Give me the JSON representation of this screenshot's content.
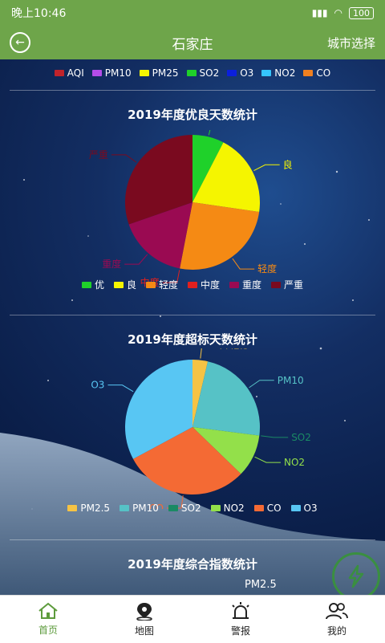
{
  "status": {
    "time": "晚上10:46",
    "battery": "100"
  },
  "appbar": {
    "title": "石家庄",
    "city_button": "城市选择"
  },
  "top_legend": [
    {
      "label": "AQI",
      "color": "#c1232b"
    },
    {
      "label": "PM10",
      "color": "#b44ce8"
    },
    {
      "label": "PM25",
      "color": "#f5f500"
    },
    {
      "label": "SO2",
      "color": "#1fd12a"
    },
    {
      "label": "O3",
      "color": "#0b1fdc"
    },
    {
      "label": "NO2",
      "color": "#35c6ff"
    },
    {
      "label": "CO",
      "color": "#f08020"
    }
  ],
  "charts": {
    "chart1_title": "2019年度优良天数统计",
    "chart2_title": "2019年度超标天数统计",
    "chart3_title": "2019年度综合指数统计",
    "chart3_label": "PM2.5"
  },
  "tabs": [
    {
      "label": "首页"
    },
    {
      "label": "地图"
    },
    {
      "label": "警报"
    },
    {
      "label": "我的"
    }
  ],
  "chart_data": [
    {
      "type": "pie",
      "title": "2019年度优良天数统计",
      "legend": [
        "优",
        "良",
        "轻度",
        "中度",
        "重度",
        "严重"
      ],
      "colors": [
        "#1fd12a",
        "#f5f500",
        "#f58a14",
        "#e0201e",
        "#9a0a52",
        "#7a0a1f"
      ],
      "values": [
        25,
        65,
        85,
        0,
        55,
        100
      ]
    },
    {
      "type": "pie",
      "title": "2019年度超标天数统计",
      "legend": [
        "PM2.5",
        "PM10",
        "SO2",
        "NO2",
        "CO",
        "O3"
      ],
      "colors": [
        "#f6c344",
        "#56c2c6",
        "#1a8a64",
        "#93e04a",
        "#f46a34",
        "#58c6f3"
      ],
      "values": [
        5,
        32,
        0,
        14,
        41,
        45
      ]
    }
  ]
}
